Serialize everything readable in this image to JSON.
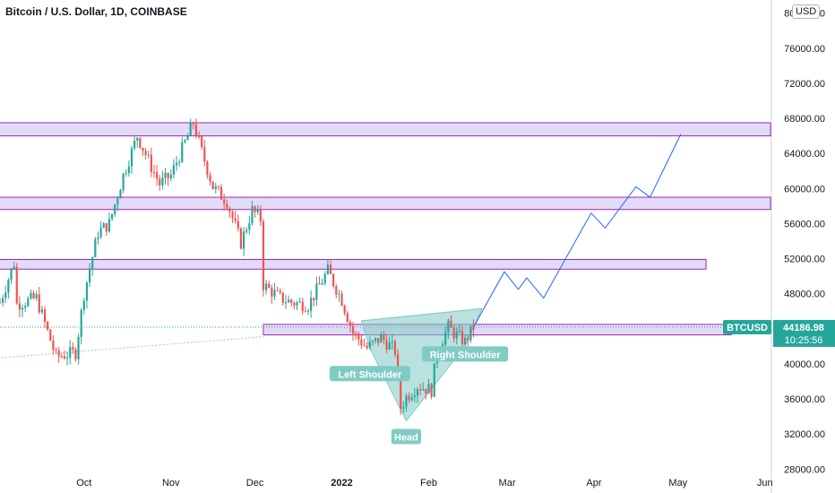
{
  "header": {
    "title": "Bitcoin / U.S. Dollar, 1D, COINBASE",
    "currency_badge": "USD"
  },
  "colors": {
    "up": "#26a69a",
    "down": "#ef5350",
    "zone_fill": "#ddd5f7",
    "zone_stroke": "#9c27b0",
    "projection": "#2962ff",
    "pattern_fill": "#80cbc4",
    "label_bg": "#80cbc4",
    "price_tag_bg": "#26a69a",
    "axis_text": "#131722"
  },
  "chart_data": {
    "type": "candlestick",
    "title": "Bitcoin / U.S. Dollar, 1D, COINBASE",
    "xlabel": "",
    "ylabel": "",
    "ylim": [
      26800,
      81500
    ],
    "xlim": [
      "2021-09-01",
      "2022-06-03"
    ],
    "grid": false,
    "y_ticks": [
      {
        "value": 80000,
        "label": "80000.00"
      },
      {
        "value": 76000,
        "label": "76000.00"
      },
      {
        "value": 72000,
        "label": "72000.00"
      },
      {
        "value": 68000,
        "label": "68000.00"
      },
      {
        "value": 64000,
        "label": "64000.00"
      },
      {
        "value": 60000,
        "label": "60000.00"
      },
      {
        "value": 56000,
        "label": "56000.00"
      },
      {
        "value": 52000,
        "label": "52000.00"
      },
      {
        "value": 48000,
        "label": "48000.00"
      },
      {
        "value": 40000,
        "label": "40000.00"
      },
      {
        "value": 36000,
        "label": "36000.00"
      },
      {
        "value": 32000,
        "label": "32000.00"
      },
      {
        "value": 28000,
        "label": "28000.00"
      }
    ],
    "x_ticks": [
      {
        "date": "2021-10-01",
        "label": "Oct",
        "bold": false
      },
      {
        "date": "2021-11-01",
        "label": "Nov",
        "bold": false
      },
      {
        "date": "2021-12-01",
        "label": "Dec",
        "bold": false
      },
      {
        "date": "2022-01-01",
        "label": "2022",
        "bold": true
      },
      {
        "date": "2022-02-01",
        "label": "Feb",
        "bold": false
      },
      {
        "date": "2022-03-01",
        "label": "Mar",
        "bold": false
      },
      {
        "date": "2022-04-01",
        "label": "Apr",
        "bold": false
      },
      {
        "date": "2022-05-01",
        "label": "May",
        "bold": false
      },
      {
        "date": "2022-06-01",
        "label": "Jun",
        "bold": false
      }
    ],
    "price_path": [
      [
        "2021-09-01",
        47000
      ],
      [
        "2021-09-06",
        51500
      ],
      [
        "2021-09-07",
        46800
      ],
      [
        "2021-09-14",
        47500
      ],
      [
        "2021-09-21",
        40800
      ],
      [
        "2021-09-28",
        41300
      ],
      [
        "2021-10-01",
        48000
      ],
      [
        "2021-10-06",
        55000
      ],
      [
        "2021-10-10",
        56000
      ],
      [
        "2021-10-15",
        61500
      ],
      [
        "2021-10-20",
        66000
      ],
      [
        "2021-10-25",
        62500
      ],
      [
        "2021-10-28",
        60500
      ],
      [
        "2021-11-01",
        61500
      ],
      [
        "2021-11-09",
        67500
      ],
      [
        "2021-11-12",
        64200
      ],
      [
        "2021-11-16",
        60200
      ],
      [
        "2021-11-21",
        58500
      ],
      [
        "2021-11-26",
        53800
      ],
      [
        "2021-11-30",
        57500
      ],
      [
        "2021-12-03",
        56500
      ],
      [
        "2021-12-04",
        49000
      ],
      [
        "2021-12-10",
        47500
      ],
      [
        "2021-12-14",
        47000
      ],
      [
        "2021-12-20",
        46700
      ],
      [
        "2021-12-27",
        50600
      ],
      [
        "2022-01-01",
        47300
      ],
      [
        "2022-01-05",
        43500
      ],
      [
        "2022-01-10",
        41800
      ],
      [
        "2022-01-15",
        43000
      ],
      [
        "2022-01-20",
        41500
      ],
      [
        "2022-01-22",
        35000
      ],
      [
        "2022-01-24",
        36200
      ],
      [
        "2022-01-28",
        37500
      ],
      [
        "2022-02-02",
        37000
      ],
      [
        "2022-02-04",
        41500
      ],
      [
        "2022-02-08",
        44200
      ],
      [
        "2022-02-10",
        43500
      ],
      [
        "2022-02-14",
        42500
      ],
      [
        "2022-02-17",
        44187
      ]
    ],
    "current_price": {
      "symbol": "BTCUSD",
      "value": 44186.98,
      "label": "44186.98",
      "countdown": "10:25:56"
    },
    "zones": [
      {
        "start": "2021-08-25",
        "end": "2022-06-03",
        "high": 67500,
        "low": 66000
      },
      {
        "start": "2021-08-25",
        "end": "2022-06-03",
        "high": 59000,
        "low": 57600
      },
      {
        "start": "2021-08-25",
        "end": "2022-05-11",
        "high": 51900,
        "low": 50800
      },
      {
        "start": "2021-12-04",
        "end": "2022-05-20",
        "high": 44500,
        "low": 43300
      }
    ],
    "pattern": {
      "left_shoulder": {
        "date": "2022-01-11",
        "price": 41800,
        "label": "Left Shoulder"
      },
      "head": {
        "date": "2022-01-24",
        "price": 33500,
        "label": "Head"
      },
      "right_shoulder": {
        "date": "2022-02-14",
        "price": 42000,
        "label": "Right Shoulder"
      },
      "neckline": [
        [
          "2022-01-08",
          44900
        ],
        [
          "2022-02-20",
          46300
        ]
      ]
    },
    "trendline": [
      [
        "2021-08-25",
        40500
      ],
      [
        "2021-12-04",
        43100
      ]
    ],
    "projection": [
      [
        "2022-02-17",
        44187
      ],
      [
        "2022-02-28",
        50500
      ],
      [
        "2022-03-05",
        48500
      ],
      [
        "2022-03-08",
        49800
      ],
      [
        "2022-03-14",
        47500
      ],
      [
        "2022-03-31",
        57200
      ],
      [
        "2022-04-05",
        55500
      ],
      [
        "2022-04-16",
        60200
      ],
      [
        "2022-04-21",
        59000
      ],
      [
        "2022-05-02",
        66200
      ]
    ]
  }
}
